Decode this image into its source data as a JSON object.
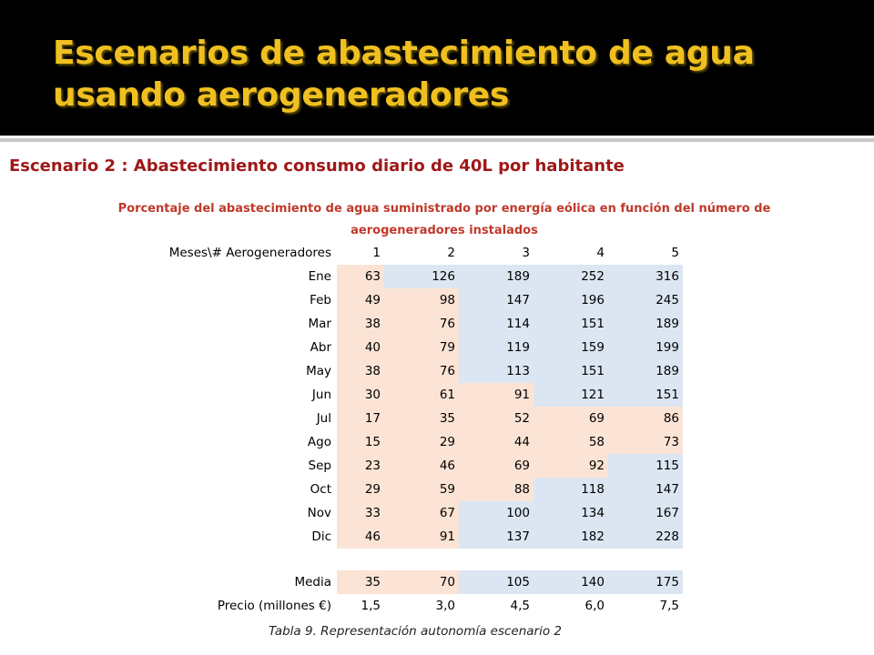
{
  "slide": {
    "title": "Escenarios de abastecimiento de agua usando aerogeneradores",
    "subtitle": "Escenario 2 : Abastecimiento consumo diario de 40L por habitante",
    "colors": {
      "title": "#f0c020",
      "subtitle": "#a01818",
      "header_bg": "#000000",
      "low_cell": "#fbe4d5",
      "high_cell": "#dce6f2"
    }
  },
  "table": {
    "caption": "Porcentaje del abastecimiento de agua suministrado por energía eólica en función del número de aerogeneradores instalados",
    "corner_header": "Meses\\# Aerogeneradores",
    "columns": [
      "1",
      "2",
      "3",
      "4",
      "5"
    ],
    "rows": [
      {
        "label": "Ene",
        "values": [
          "63",
          "126",
          "189",
          "252",
          "316"
        ]
      },
      {
        "label": "Feb",
        "values": [
          "49",
          "98",
          "147",
          "196",
          "245"
        ]
      },
      {
        "label": "Mar",
        "values": [
          "38",
          "76",
          "114",
          "151",
          "189"
        ]
      },
      {
        "label": "Abr",
        "values": [
          "40",
          "79",
          "119",
          "159",
          "199"
        ]
      },
      {
        "label": "May",
        "values": [
          "38",
          "76",
          "113",
          "151",
          "189"
        ]
      },
      {
        "label": "Jun",
        "values": [
          "30",
          "61",
          "91",
          "121",
          "151"
        ]
      },
      {
        "label": "Jul",
        "values": [
          "17",
          "35",
          "52",
          "69",
          "86"
        ]
      },
      {
        "label": "Ago",
        "values": [
          "15",
          "29",
          "44",
          "58",
          "73"
        ]
      },
      {
        "label": "Sep",
        "values": [
          "23",
          "46",
          "69",
          "92",
          "115"
        ]
      },
      {
        "label": "Oct",
        "values": [
          "29",
          "59",
          "88",
          "118",
          "147"
        ]
      },
      {
        "label": "Nov",
        "values": [
          "33",
          "67",
          "100",
          "134",
          "167"
        ]
      },
      {
        "label": "Dic",
        "values": [
          "46",
          "91",
          "137",
          "182",
          "228"
        ]
      }
    ],
    "media": {
      "label": "Media",
      "values": [
        "35",
        "70",
        "105",
        "140",
        "175"
      ]
    },
    "precio": {
      "label": "Precio (millones €)",
      "values": [
        "1,5",
        "3,0",
        "4,5",
        "6,0",
        "7,5"
      ]
    }
  },
  "footer_caption": "Tabla 9. Representación autonomía escenario 2"
}
